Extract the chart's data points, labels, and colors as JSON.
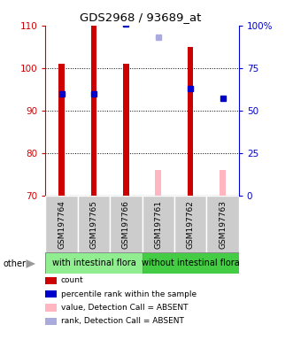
{
  "title": "GDS2968 / 93689_at",
  "samples": [
    "GSM197764",
    "GSM197765",
    "GSM197766",
    "GSM197761",
    "GSM197762",
    "GSM197763"
  ],
  "groups": [
    "with intestinal flora",
    "without intestinal flora"
  ],
  "ylim_left": [
    70,
    110
  ],
  "ylim_right": [
    0,
    100
  ],
  "yticks_left": [
    70,
    80,
    90,
    100,
    110
  ],
  "yticks_right": [
    0,
    25,
    50,
    75,
    100
  ],
  "yticklabels_right": [
    "0",
    "25",
    "50",
    "75",
    "100%"
  ],
  "count_present": [
    101,
    110,
    101,
    null,
    105,
    null
  ],
  "count_absent": [
    null,
    null,
    null,
    76,
    null,
    76
  ],
  "rank_present": [
    60,
    60,
    101,
    null,
    63,
    57
  ],
  "rank_absent": [
    null,
    null,
    null,
    93,
    null,
    null
  ],
  "bar_width": 0.18,
  "count_color": "#cc0000",
  "count_absent_color": "#ffb6c1",
  "rank_color": "#0000cc",
  "rank_absent_color": "#aaaadd",
  "legend_items": [
    {
      "label": "count",
      "color": "#cc0000"
    },
    {
      "label": "percentile rank within the sample",
      "color": "#0000cc"
    },
    {
      "label": "value, Detection Call = ABSENT",
      "color": "#ffb6c1"
    },
    {
      "label": "rank, Detection Call = ABSENT",
      "color": "#aaaadd"
    }
  ],
  "bar_bottom": 70,
  "tick_color_left": "#cc0000",
  "tick_color_right": "#0000cc",
  "group1_color": "#90ee90",
  "group2_color": "#44cc44"
}
